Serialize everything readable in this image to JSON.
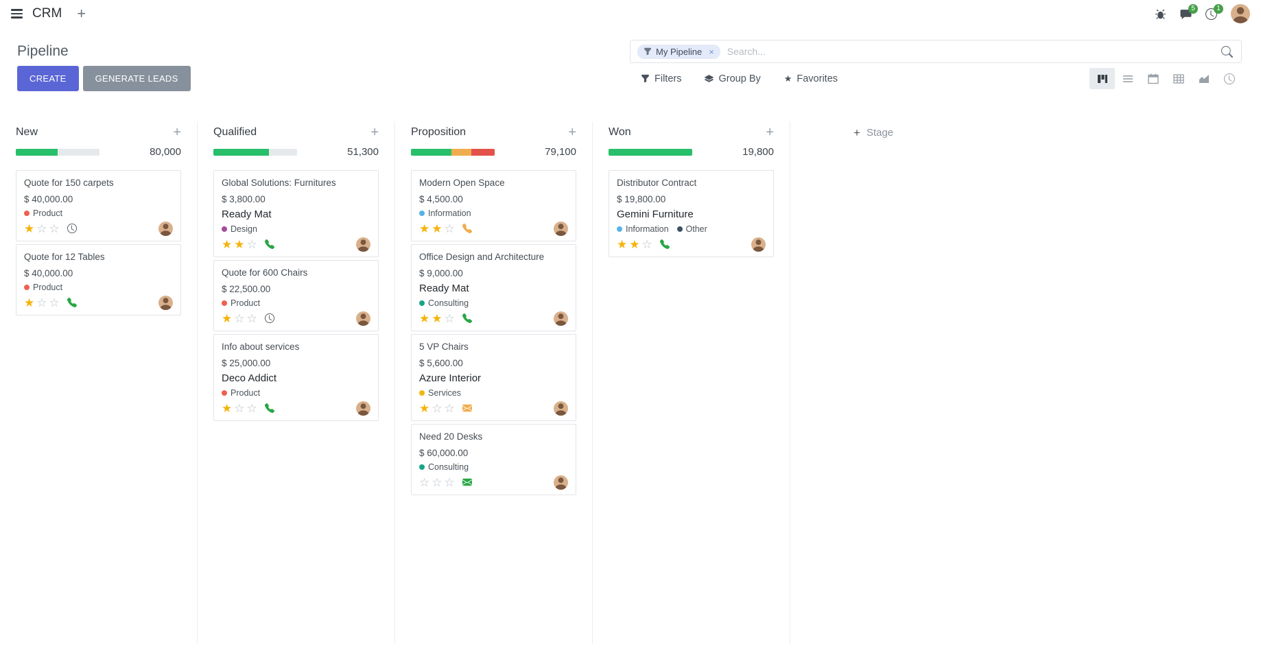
{
  "colors": {
    "primary": "#5b66d6",
    "secondary": "#87919d",
    "badge": "#45a049",
    "star": "#f5b30a",
    "facet_bg": "#e4eaf8"
  },
  "navbar": {
    "app_name": "CRM",
    "messages_badge": "5",
    "activities_badge": "1"
  },
  "control_panel": {
    "breadcrumb": "Pipeline",
    "buttons": {
      "create": "CREATE",
      "generate_leads": "GENERATE LEADS"
    },
    "search": {
      "facet_label": "My Pipeline",
      "placeholder": "Search..."
    },
    "menus": {
      "filters": "Filters",
      "group_by": "Group By",
      "favorites": "Favorites"
    }
  },
  "kanban": {
    "add_stage": "Stage",
    "columns": [
      {
        "title": "New",
        "counter": "80,000",
        "progress": [
          {
            "name": "success",
            "color": "#28bf6b",
            "pct": 50
          },
          {
            "name": "empty",
            "color": "#e6e9ec",
            "pct": 50
          }
        ],
        "cards": [
          {
            "title": "Quote for 150 carpets",
            "amount": "$ 40,000.00",
            "tags": [
              {
                "label": "Product",
                "color": "#f06050"
              }
            ],
            "stars": 1,
            "activity": {
              "icon": "clock",
              "color": "#495057"
            }
          },
          {
            "title": "Quote for 12 Tables",
            "amount": "$ 40,000.00",
            "tags": [
              {
                "label": "Product",
                "color": "#f06050"
              }
            ],
            "stars": 1,
            "activity": {
              "icon": "phone",
              "color": "#28a745"
            }
          }
        ]
      },
      {
        "title": "Qualified",
        "counter": "51,300",
        "progress": [
          {
            "name": "success",
            "color": "#28bf6b",
            "pct": 66
          },
          {
            "name": "empty",
            "color": "#e6e9ec",
            "pct": 34
          }
        ],
        "cards": [
          {
            "title": "Global Solutions: Furnitures",
            "amount": "$ 3,800.00",
            "partner": "Ready Mat",
            "tags": [
              {
                "label": "Design",
                "color": "#a24b9c"
              }
            ],
            "stars": 2,
            "activity": {
              "icon": "phone",
              "color": "#28a745"
            }
          },
          {
            "title": "Quote for 600 Chairs",
            "amount": "$ 22,500.00",
            "tags": [
              {
                "label": "Product",
                "color": "#f06050"
              }
            ],
            "stars": 1,
            "activity": {
              "icon": "clock",
              "color": "#495057"
            }
          },
          {
            "title": "Info about services",
            "amount": "$ 25,000.00",
            "partner": "Deco Addict",
            "tags": [
              {
                "label": "Product",
                "color": "#f06050"
              }
            ],
            "stars": 1,
            "activity": {
              "icon": "phone",
              "color": "#28a745"
            }
          }
        ]
      },
      {
        "title": "Proposition",
        "counter": "79,100",
        "progress": [
          {
            "name": "success",
            "color": "#28bf6b",
            "pct": 48
          },
          {
            "name": "warning",
            "color": "#f0ad4e",
            "pct": 24
          },
          {
            "name": "danger",
            "color": "#e2514a",
            "pct": 28
          }
        ],
        "cards": [
          {
            "title": "Modern Open Space",
            "amount": "$ 4,500.00",
            "tags": [
              {
                "label": "Information",
                "color": "#56b3e8"
              }
            ],
            "stars": 2,
            "activity": {
              "icon": "phone",
              "color": "#f0ad4e"
            }
          },
          {
            "title": "Office Design and Architecture",
            "amount": "$ 9,000.00",
            "partner": "Ready Mat",
            "tags": [
              {
                "label": "Consulting",
                "color": "#17a587"
              }
            ],
            "stars": 2,
            "activity": {
              "icon": "phone",
              "color": "#28a745"
            }
          },
          {
            "title": "5 VP Chairs",
            "amount": "$ 5,600.00",
            "partner": "Azure Interior",
            "tags": [
              {
                "label": "Services",
                "color": "#efb810"
              }
            ],
            "stars": 1,
            "activity": {
              "icon": "mail",
              "color": "#f0ad4e"
            }
          },
          {
            "title": "Need 20 Desks",
            "amount": "$ 60,000.00",
            "tags": [
              {
                "label": "Consulting",
                "color": "#17a587"
              }
            ],
            "stars": 0,
            "activity": {
              "icon": "mail",
              "color": "#28a745"
            }
          }
        ]
      },
      {
        "title": "Won",
        "counter": "19,800",
        "progress": [
          {
            "name": "success",
            "color": "#28bf6b",
            "pct": 100
          }
        ],
        "cards": [
          {
            "title": "Distributor Contract",
            "amount": "$ 19,800.00",
            "partner": "Gemini Furniture",
            "tags": [
              {
                "label": "Information",
                "color": "#56b3e8"
              },
              {
                "label": "Other",
                "color": "#3b5166"
              }
            ],
            "stars": 2,
            "activity": {
              "icon": "phone",
              "color": "#28a745"
            }
          }
        ]
      }
    ]
  }
}
